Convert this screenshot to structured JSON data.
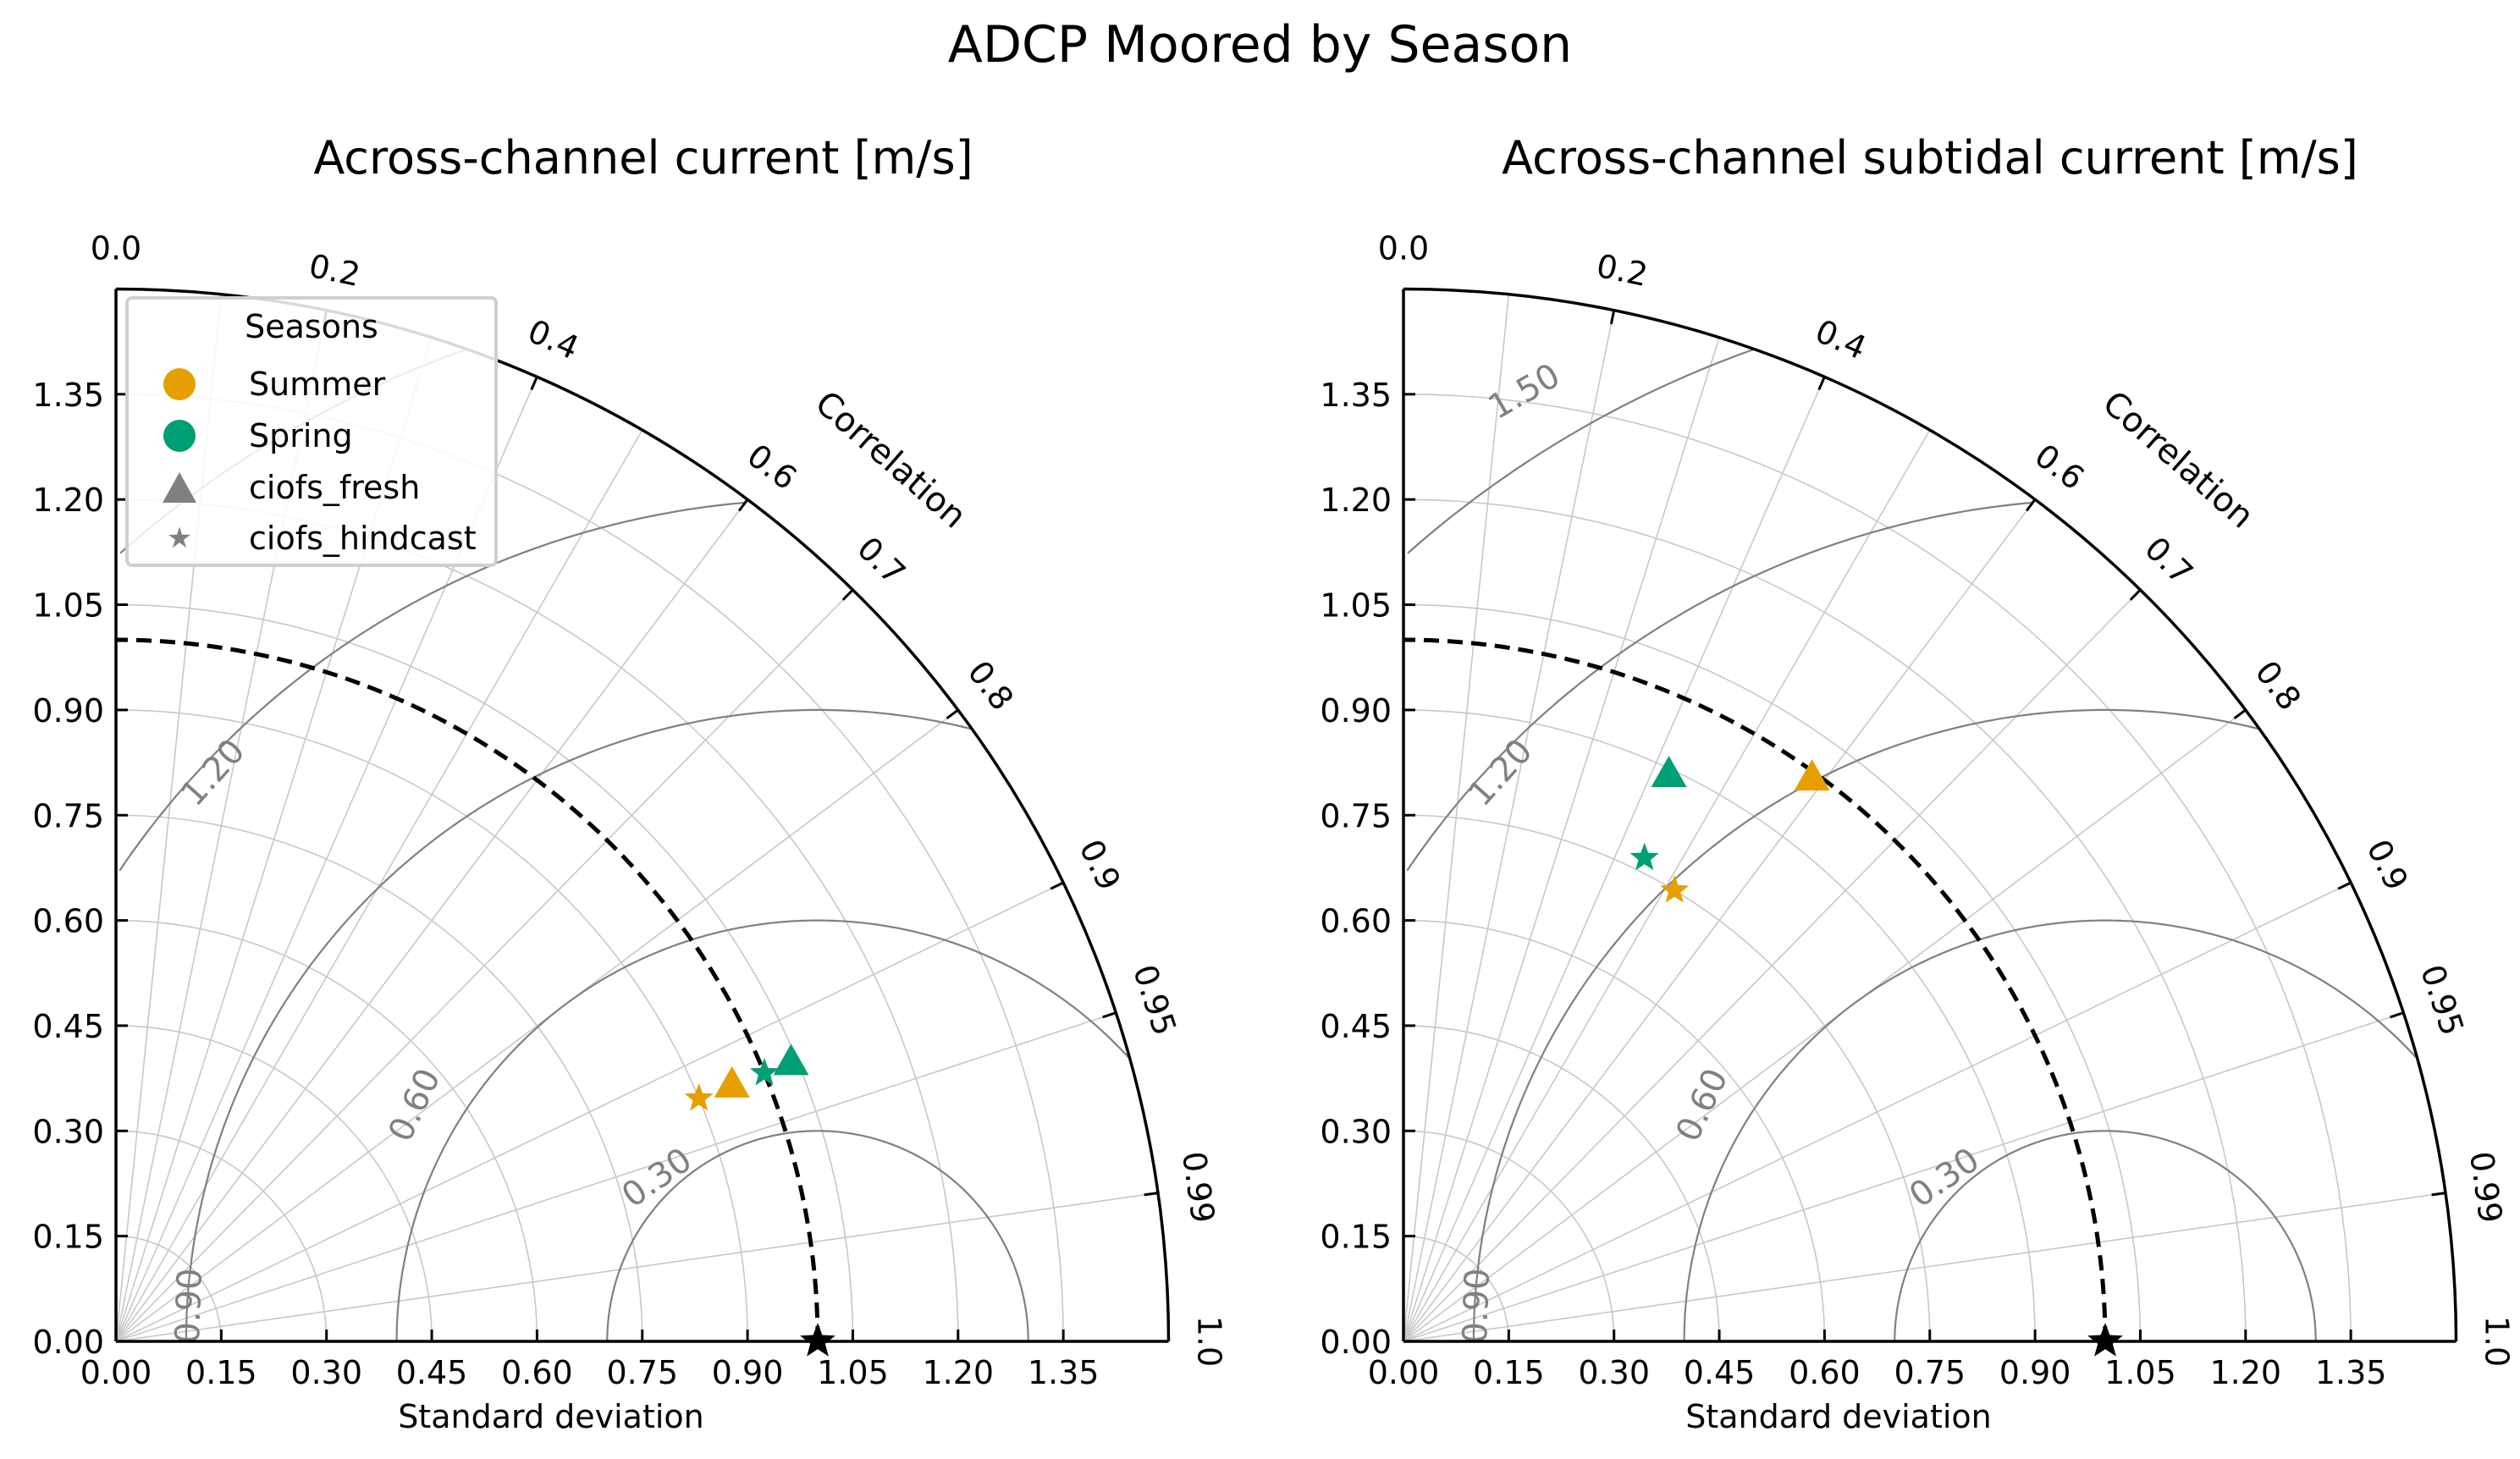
{
  "figure": {
    "suptitle": "ADCP Moored by Season"
  },
  "colors": {
    "Summer": "#E69F00",
    "Spring": "#009E73",
    "legend_marker_gray": "#808080",
    "reference": "#000000"
  },
  "legend": {
    "title": "Seasons",
    "entries": [
      {
        "label": "Summer",
        "symbol": "circle",
        "color": "#E69F00"
      },
      {
        "label": "Spring",
        "symbol": "circle",
        "color": "#009E73"
      },
      {
        "label": "ciofs_fresh",
        "symbol": "triangle",
        "color": "#808080"
      },
      {
        "label": "ciofs_hindcast",
        "symbol": "star",
        "color": "#808080"
      }
    ]
  },
  "chart_data": [
    {
      "type": "scatter",
      "subtype": "taylor_diagram",
      "title": "Across-channel current [m/s]",
      "xlabel": "Standard deviation",
      "ylabel": "",
      "angular_label": "Correlation",
      "std_range": [
        0,
        1.5
      ],
      "std_ticks": [
        "0.00",
        "0.15",
        "0.30",
        "0.45",
        "0.60",
        "0.75",
        "0.90",
        "1.05",
        "1.20",
        "1.35"
      ],
      "corr_ticks": [
        "0.0",
        "0.2",
        "0.4",
        "0.6",
        "0.7",
        "0.8",
        "0.9",
        "0.95",
        "0.99",
        "1.0"
      ],
      "rms_contours": {
        "levels": [
          "0.30",
          "0.60",
          "0.90",
          "1.20",
          "1.50"
        ],
        "labeled": [
          "0.30",
          "0.60",
          "0.90",
          "1.20"
        ]
      },
      "reference": {
        "std": 1.0,
        "corr": 1.0,
        "marker": "star",
        "dashed_arc": true
      },
      "grid": true,
      "legend_position": "top-left",
      "points": [
        {
          "season": "Summer",
          "model": "ciofs_fresh",
          "marker": "triangle",
          "std": 0.95,
          "corr": 0.924
        },
        {
          "season": "Summer",
          "model": "ciofs_hindcast",
          "marker": "star",
          "std": 0.9,
          "corr": 0.923
        },
        {
          "season": "Spring",
          "model": "ciofs_fresh",
          "marker": "triangle",
          "std": 1.04,
          "corr": 0.925
        },
        {
          "season": "Spring",
          "model": "ciofs_hindcast",
          "marker": "star",
          "std": 1.0,
          "corr": 0.924
        }
      ]
    },
    {
      "type": "scatter",
      "subtype": "taylor_diagram",
      "title": "Across-channel subtidal current [m/s]",
      "xlabel": "Standard deviation",
      "ylabel": "",
      "angular_label": "Correlation",
      "std_range": [
        0,
        1.5
      ],
      "std_ticks": [
        "0.00",
        "0.15",
        "0.30",
        "0.45",
        "0.60",
        "0.75",
        "0.90",
        "1.05",
        "1.20",
        "1.35"
      ],
      "corr_ticks": [
        "0.0",
        "0.2",
        "0.4",
        "0.6",
        "0.7",
        "0.8",
        "0.9",
        "0.95",
        "0.99",
        "1.0"
      ],
      "rms_contours": {
        "levels": [
          "0.30",
          "0.60",
          "0.90",
          "1.20",
          "1.50"
        ],
        "labeled": [
          "0.30",
          "0.60",
          "0.90",
          "1.20",
          "1.50"
        ]
      },
      "reference": {
        "std": 1.0,
        "corr": 1.0,
        "marker": "star",
        "dashed_arc": true
      },
      "grid": true,
      "legend_position": "none",
      "points": [
        {
          "season": "Summer",
          "model": "ciofs_fresh",
          "marker": "triangle",
          "std": 0.99,
          "corr": 0.588
        },
        {
          "season": "Summer",
          "model": "ciofs_hindcast",
          "marker": "star",
          "std": 0.75,
          "corr": 0.515
        },
        {
          "season": "Spring",
          "model": "ciofs_fresh",
          "marker": "triangle",
          "std": 0.89,
          "corr": 0.425
        },
        {
          "season": "Spring",
          "model": "ciofs_hindcast",
          "marker": "star",
          "std": 0.77,
          "corr": 0.446
        }
      ]
    }
  ]
}
